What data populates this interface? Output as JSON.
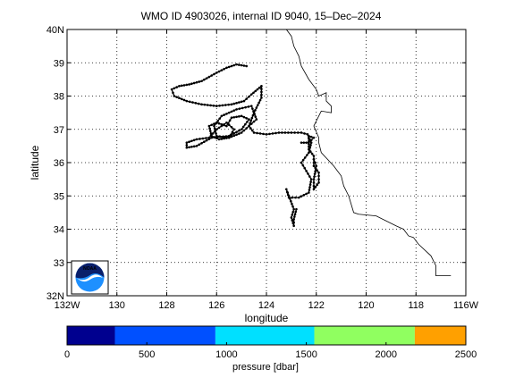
{
  "chart_data": {
    "type": "line",
    "title": "WMO ID 4903026, internal ID 9040, 15–Dec–2024",
    "xlabel": "longitude",
    "ylabel": "latitude",
    "xlim": [
      -132,
      -116
    ],
    "ylim": [
      32,
      40
    ],
    "grid": true,
    "x_ticks": [
      -132,
      -130,
      -128,
      -126,
      -124,
      -122,
      -120,
      -118,
      -116
    ],
    "x_tick_labels": [
      "132W",
      "130",
      "128",
      "126",
      "124",
      "122",
      "120",
      "118",
      "116W"
    ],
    "y_ticks": [
      32,
      33,
      34,
      35,
      36,
      37,
      38,
      39,
      40
    ],
    "y_tick_labels": [
      "32N",
      "33",
      "34",
      "35",
      "36",
      "37",
      "38",
      "39",
      "40N"
    ],
    "coastline": [
      [
        -123.2,
        40.0
      ],
      [
        -123.0,
        39.8
      ],
      [
        -122.9,
        39.5
      ],
      [
        -122.7,
        39.2
      ],
      [
        -122.6,
        38.9
      ],
      [
        -122.3,
        38.5
      ],
      [
        -122.0,
        38.2
      ],
      [
        -121.9,
        38.0
      ],
      [
        -121.6,
        38.1
      ],
      [
        -121.6,
        37.85
      ],
      [
        -121.4,
        37.7
      ],
      [
        -121.4,
        37.5
      ],
      [
        -121.8,
        37.55
      ],
      [
        -122.1,
        37.1
      ],
      [
        -121.9,
        36.75
      ],
      [
        -121.9,
        36.6
      ],
      [
        -121.8,
        36.3
      ],
      [
        -121.3,
        35.9
      ],
      [
        -121.0,
        35.6
      ],
      [
        -120.9,
        35.3
      ],
      [
        -120.7,
        35.0
      ],
      [
        -120.5,
        34.5
      ],
      [
        -120.3,
        34.45
      ],
      [
        -119.6,
        34.4
      ],
      [
        -118.8,
        34.1
      ],
      [
        -118.5,
        34.0
      ],
      [
        -118.3,
        33.8
      ],
      [
        -118.1,
        33.75
      ],
      [
        -117.9,
        33.55
      ],
      [
        -117.4,
        33.2
      ],
      [
        -117.2,
        32.9
      ],
      [
        -117.2,
        32.6
      ],
      [
        -116.6,
        32.6
      ]
    ],
    "series": [
      {
        "values": [
          [
            -124.8,
            38.9
          ],
          [
            -125.2,
            38.95
          ],
          [
            -125.6,
            38.85
          ],
          [
            -126.0,
            38.7
          ],
          [
            -126.6,
            38.45
          ],
          [
            -127.1,
            38.35
          ],
          [
            -127.5,
            38.3
          ],
          [
            -127.8,
            38.2
          ],
          [
            -127.7,
            38.0
          ],
          [
            -127.2,
            37.85
          ],
          [
            -126.6,
            37.75
          ],
          [
            -126.0,
            37.7
          ],
          [
            -125.4,
            37.75
          ],
          [
            -124.9,
            37.85
          ],
          [
            -124.6,
            38.05
          ],
          [
            -124.2,
            38.3
          ],
          [
            -124.2,
            37.95
          ],
          [
            -124.5,
            37.5
          ],
          [
            -124.7,
            37.1
          ],
          [
            -124.4,
            37.3
          ],
          [
            -124.6,
            37.7
          ],
          [
            -125.2,
            37.6
          ],
          [
            -125.8,
            37.4
          ],
          [
            -126.1,
            37.1
          ],
          [
            -126.0,
            36.8
          ],
          [
            -125.5,
            36.75
          ],
          [
            -125.0,
            36.9
          ],
          [
            -124.7,
            37.1
          ],
          [
            -124.5,
            36.9
          ],
          [
            -124.0,
            36.85
          ],
          [
            -123.5,
            36.9
          ],
          [
            -123.0,
            36.9
          ],
          [
            -122.6,
            36.9
          ],
          [
            -122.35,
            36.85
          ],
          [
            -122.2,
            36.6
          ],
          [
            -122.3,
            36.3
          ],
          [
            -122.6,
            36.0
          ],
          [
            -122.4,
            35.75
          ],
          [
            -122.2,
            35.5
          ],
          [
            -122.3,
            35.1
          ],
          [
            -122.7,
            34.95
          ],
          [
            -123.1,
            34.95
          ],
          [
            -123.2,
            35.2
          ],
          [
            -123.1,
            35.0
          ],
          [
            -122.9,
            34.6
          ],
          [
            -123.0,
            34.35
          ],
          [
            -122.9,
            34.1
          ],
          [
            -122.9,
            34.3
          ],
          [
            -122.8,
            34.6
          ]
        ]
      },
      {
        "values": [
          [
            -125.6,
            37.1
          ],
          [
            -126.0,
            37.2
          ],
          [
            -126.3,
            37.1
          ],
          [
            -126.2,
            36.8
          ],
          [
            -125.9,
            36.7
          ],
          [
            -125.5,
            36.75
          ],
          [
            -125.3,
            37.0
          ],
          [
            -125.6,
            37.2
          ],
          [
            -126.0,
            37.0
          ],
          [
            -126.3,
            36.75
          ],
          [
            -126.8,
            36.7
          ],
          [
            -127.2,
            36.6
          ],
          [
            -127.2,
            36.45
          ],
          [
            -126.8,
            36.5
          ],
          [
            -126.2,
            36.75
          ],
          [
            -125.5,
            36.8
          ],
          [
            -125.0,
            37.0
          ],
          [
            -124.7,
            37.3
          ],
          [
            -125.0,
            37.4
          ],
          [
            -125.4,
            37.35
          ],
          [
            -125.6,
            37.1
          ]
        ]
      },
      {
        "values": [
          [
            -122.6,
            36.6
          ],
          [
            -122.3,
            36.6
          ],
          [
            -122.1,
            36.75
          ],
          [
            -122.3,
            36.8
          ],
          [
            -122.3,
            36.4
          ],
          [
            -122.1,
            36.2
          ],
          [
            -122.1,
            35.9
          ],
          [
            -121.9,
            35.7
          ],
          [
            -121.9,
            35.4
          ],
          [
            -122.1,
            35.2
          ],
          [
            -122.1,
            35.5
          ],
          [
            -122.0,
            35.9
          ],
          [
            -122.1,
            36.1
          ]
        ]
      }
    ],
    "colorbar": {
      "label": "pressure [dbar]",
      "min": 0,
      "max": 2500,
      "tick_values": [
        0,
        500,
        1000,
        1500,
        2000,
        2500
      ],
      "tick_labels": [
        "0",
        "500",
        "1000",
        "1500",
        "2000",
        "2500"
      ],
      "bins": [
        {
          "from": 0,
          "to": 300,
          "color": "#00008f"
        },
        {
          "from": 300,
          "to": 930,
          "color": "#0050ff"
        },
        {
          "from": 930,
          "to": 1550,
          "color": "#00e0ff"
        },
        {
          "from": 1550,
          "to": 2180,
          "color": "#90ff60"
        },
        {
          "from": 2180,
          "to": 2500,
          "color": "#ffa000"
        }
      ]
    },
    "logo": {
      "text": "NOAA",
      "icon": "noaa-logo-icon",
      "colors": {
        "upper": "#0a1f6b",
        "lower": "#1e90ff",
        "bird": "#ffffff"
      }
    }
  }
}
